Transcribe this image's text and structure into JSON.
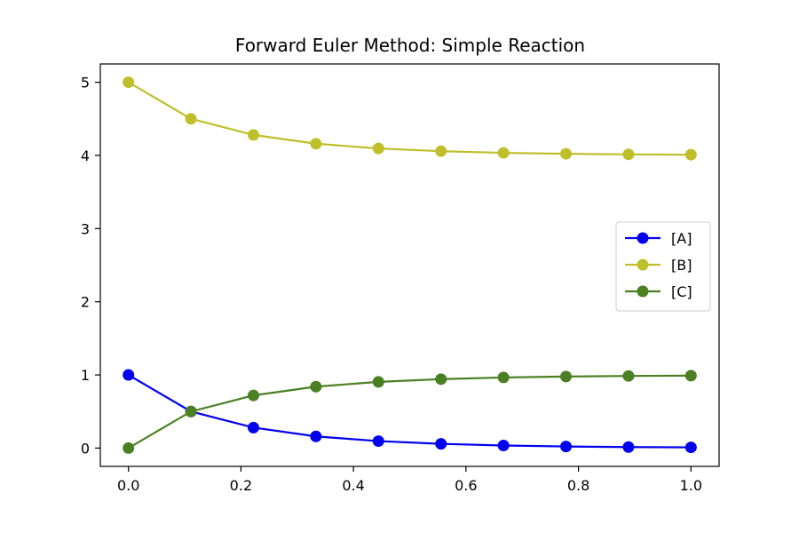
{
  "chart_data": {
    "type": "line",
    "title": "Forward Euler Method: Simple Reaction",
    "xlabel": "",
    "ylabel": "",
    "xlim": [
      -0.05,
      1.05
    ],
    "ylim": [
      -0.25,
      5.25
    ],
    "xticks": [
      0.0,
      0.2,
      0.4,
      0.6,
      0.8,
      1.0
    ],
    "xtick_labels": [
      "0.0",
      "0.2",
      "0.4",
      "0.6",
      "0.8",
      "1.0"
    ],
    "yticks": [
      0,
      1,
      2,
      3,
      4,
      5
    ],
    "ytick_labels": [
      "0",
      "1",
      "2",
      "3",
      "4",
      "5"
    ],
    "grid": false,
    "legend_position": "center-right",
    "x": [
      0.0,
      0.1111,
      0.2222,
      0.3333,
      0.4444,
      0.5556,
      0.6667,
      0.7778,
      0.8889,
      1.0
    ],
    "series": [
      {
        "name": "[A]",
        "color": "#0000ee",
        "marker": "circle",
        "values": [
          1.0,
          0.5,
          0.28,
          0.16,
          0.095,
          0.058,
          0.035,
          0.022,
          0.014,
          0.01
        ]
      },
      {
        "name": "[B]",
        "color": "#bfbf2c",
        "marker": "circle",
        "values": [
          5.0,
          4.5,
          4.28,
          4.16,
          4.095,
          4.058,
          4.035,
          4.022,
          4.014,
          4.01
        ]
      },
      {
        "name": "[C]",
        "color": "#4a7f22",
        "marker": "circle",
        "values": [
          0.0,
          0.5,
          0.72,
          0.84,
          0.905,
          0.942,
          0.965,
          0.978,
          0.986,
          0.99
        ]
      }
    ]
  }
}
